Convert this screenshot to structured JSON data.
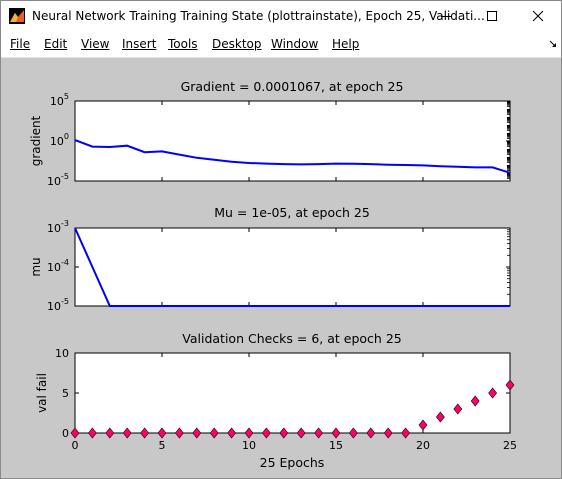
{
  "window": {
    "title": "Neural Network Training Training State (plottrainstate), Epoch 25, Validati..."
  },
  "menu": [
    "File",
    "Edit",
    "View",
    "Insert",
    "Tools",
    "Desktop",
    "Window",
    "Help"
  ],
  "icons": {
    "app": "matlab-figure-icon",
    "minimize": "minimize-icon",
    "maximize": "maximize-icon",
    "close": "close-icon",
    "dock": "dock-arrow-icon"
  },
  "colors": {
    "line": "#0000ff",
    "marker": "#ff0066",
    "figure_bg": "#c8c8c8",
    "axes_bg": "#ffffff"
  },
  "chart_data": [
    {
      "type": "line",
      "title": "Gradient = 0.0001067, at epoch 25",
      "ylabel": "gradient",
      "xlabel": "",
      "yscale": "log",
      "ylim": [
        1e-05,
        100000
      ],
      "yticks": [
        {
          "value": 1e-05,
          "base": "10",
          "exp": "-5"
        },
        {
          "value": 1,
          "base": "10",
          "exp": "0"
        },
        {
          "value": 100000,
          "base": "10",
          "exp": "5"
        }
      ],
      "xlim": [
        0,
        25
      ],
      "x": [
        0,
        1,
        2,
        3,
        4,
        5,
        6,
        7,
        8,
        9,
        10,
        11,
        12,
        13,
        14,
        15,
        16,
        17,
        18,
        19,
        20,
        21,
        22,
        23,
        24,
        25
      ],
      "y": [
        1.3,
        0.2,
        0.18,
        0.26,
        0.04,
        0.05,
        0.02,
        0.008,
        0.0045,
        0.0025,
        0.0018,
        0.0015,
        0.0013,
        0.0012,
        0.0013,
        0.0015,
        0.0014,
        0.0013,
        0.0011,
        0.001,
        0.0009,
        0.0007,
        0.0006,
        0.0005,
        0.0005,
        0.0001067
      ]
    },
    {
      "type": "line",
      "title": "Mu = 1e-05, at epoch 25",
      "ylabel": "mu",
      "xlabel": "",
      "yscale": "log",
      "ylim": [
        1e-05,
        0.001
      ],
      "yticks": [
        {
          "value": 1e-05,
          "base": "10",
          "exp": "-5"
        },
        {
          "value": 0.0001,
          "base": "10",
          "exp": "-4"
        },
        {
          "value": 0.001,
          "base": "10",
          "exp": "-3"
        }
      ],
      "xlim": [
        0,
        25
      ],
      "x": [
        0,
        1,
        2,
        3,
        4,
        5,
        6,
        7,
        8,
        9,
        10,
        11,
        12,
        13,
        14,
        15,
        16,
        17,
        18,
        19,
        20,
        21,
        22,
        23,
        24,
        25
      ],
      "y": [
        0.001,
        0.0001,
        1e-05,
        1e-05,
        1e-05,
        1e-05,
        1e-05,
        1e-05,
        1e-05,
        1e-05,
        1e-05,
        1e-05,
        1e-05,
        1e-05,
        1e-05,
        1e-05,
        1e-05,
        1e-05,
        1e-05,
        1e-05,
        1e-05,
        1e-05,
        1e-05,
        1e-05,
        1e-05,
        1e-05
      ]
    },
    {
      "type": "scatter",
      "title": "Validation Checks = 6, at epoch 25",
      "ylabel": "val fail",
      "xlabel": "25 Epochs",
      "yscale": "linear",
      "ylim": [
        0,
        10
      ],
      "yticks": [
        {
          "value": 0,
          "label": "0"
        },
        {
          "value": 5,
          "label": "5"
        },
        {
          "value": 10,
          "label": "10"
        }
      ],
      "xlim": [
        0,
        25
      ],
      "xticks": [
        0,
        5,
        10,
        15,
        20,
        25
      ],
      "x": [
        0,
        1,
        2,
        3,
        4,
        5,
        6,
        7,
        8,
        9,
        10,
        11,
        12,
        13,
        14,
        15,
        16,
        17,
        18,
        19,
        20,
        21,
        22,
        23,
        24,
        25
      ],
      "y": [
        0,
        0,
        0,
        0,
        0,
        0,
        0,
        0,
        0,
        0,
        0,
        0,
        0,
        0,
        0,
        0,
        0,
        0,
        0,
        0,
        1,
        2,
        3,
        4,
        5,
        6
      ]
    }
  ]
}
